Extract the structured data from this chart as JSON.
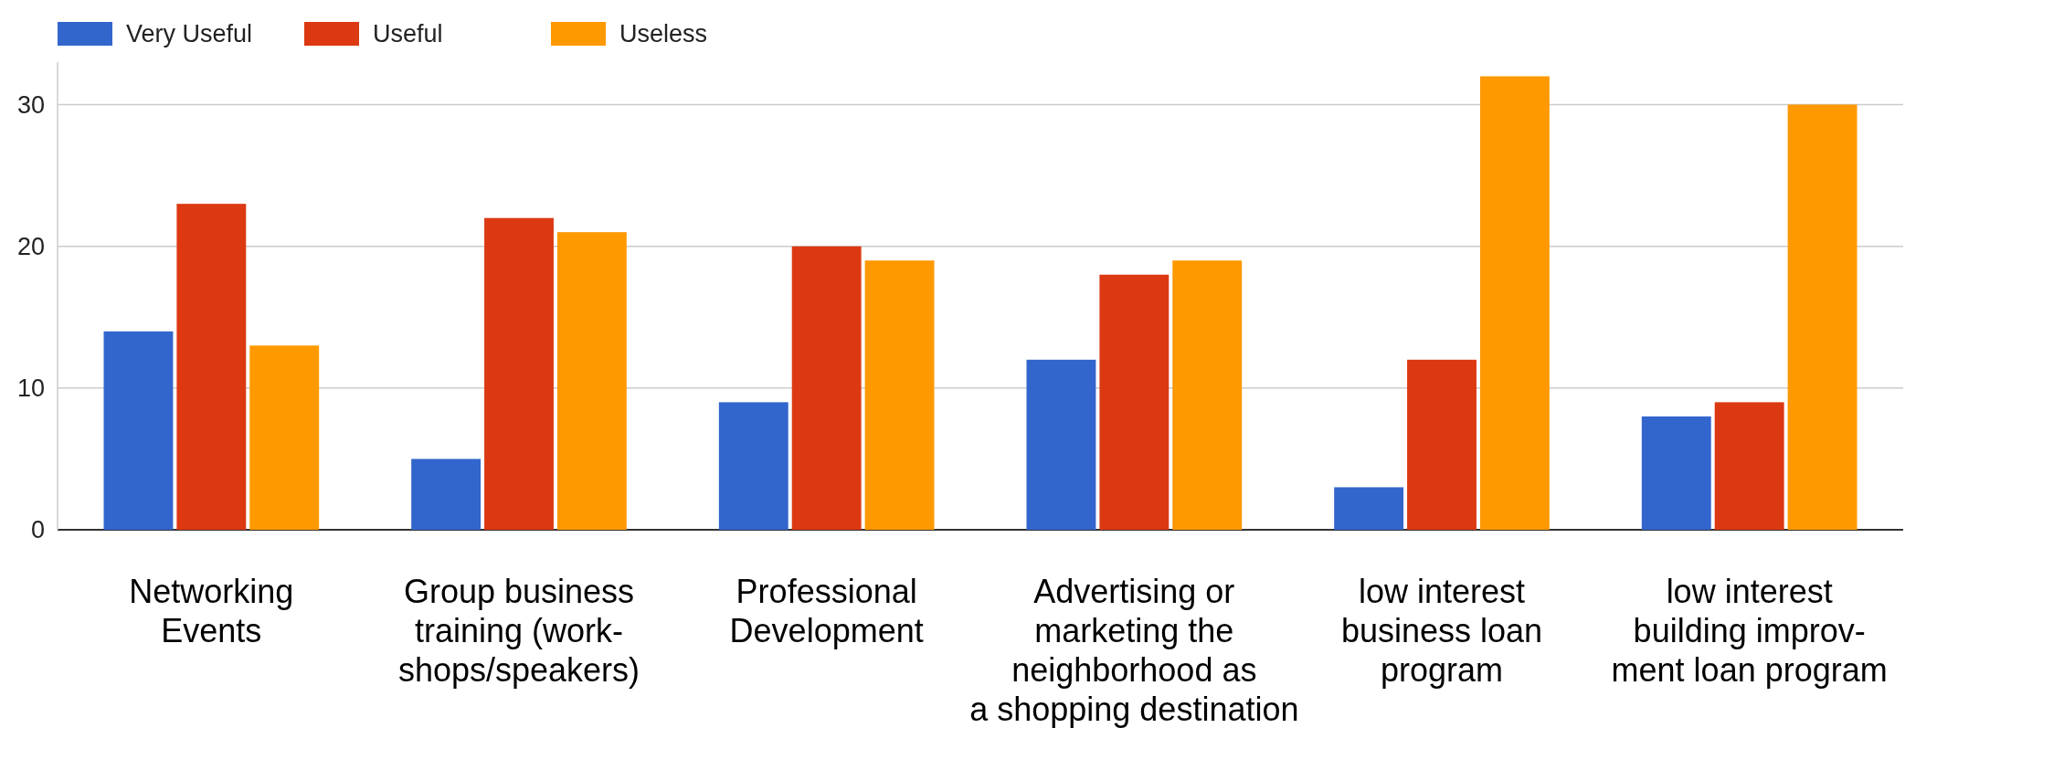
{
  "chart_data": {
    "type": "bar",
    "categories": [
      "Networking\nEvents",
      "Group business\ntraining (work-\nshops/speakers)",
      "Professional\nDevelopment",
      "Advertising or\nmarketing the\nneighborhood as\na shopping destination",
      "low interest\nbusiness loan\nprogram",
      "low interest\nbuilding improv-\nment loan program"
    ],
    "series": [
      {
        "name": "Very Useful",
        "color": "#3366cc",
        "values": [
          14,
          5,
          9,
          12,
          3,
          8
        ]
      },
      {
        "name": "Useful",
        "color": "#dc3912",
        "values": [
          23,
          22,
          20,
          18,
          12,
          9
        ]
      },
      {
        "name": "Useless",
        "color": "#ff9900",
        "values": [
          13,
          21,
          19,
          19,
          32,
          30
        ]
      }
    ],
    "ylim": [
      0,
      33
    ],
    "yticks": [
      0,
      10,
      20,
      30
    ],
    "grid": "y",
    "legend": "top left"
  }
}
